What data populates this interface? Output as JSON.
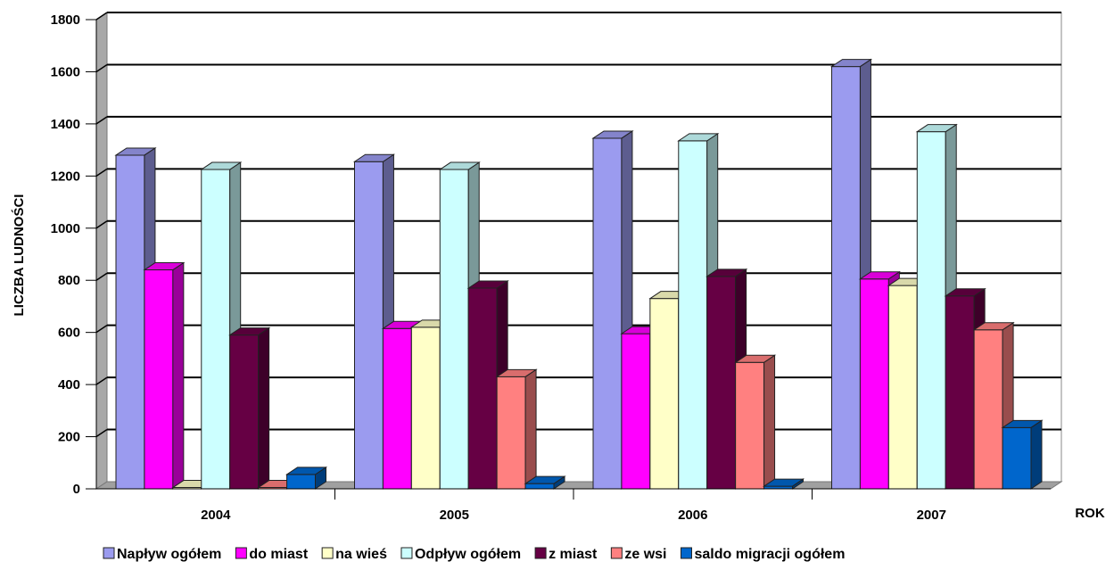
{
  "chart_data": {
    "type": "bar",
    "title": "",
    "ylabel": "LICZBA LUDNOŚCI",
    "xlabel": "ROK",
    "ylim": [
      0,
      1800
    ],
    "yticks": [
      "0",
      "200",
      "400",
      "600",
      "800",
      "1000",
      "1200",
      "1400",
      "1600",
      "1800"
    ],
    "categories": [
      "2004",
      "2005",
      "2006",
      "2007"
    ],
    "grid": true,
    "legend_position": "bottom",
    "series": [
      {
        "name": "Napływ ogółem",
        "color": "#9b9bef",
        "values": [
          1280,
          1255,
          1345,
          1620
        ]
      },
      {
        "name": "do miast",
        "color": "#ff00ff",
        "values": [
          840,
          615,
          595,
          805
        ]
      },
      {
        "name": "na wieś",
        "color": "#ffffc8",
        "values": [
          5,
          620,
          730,
          780
        ]
      },
      {
        "name": "Odpływ ogółem",
        "color": "#ccffff",
        "values": [
          1225,
          1225,
          1335,
          1370
        ]
      },
      {
        "name": "z miast",
        "color": "#660044",
        "values": [
          590,
          770,
          815,
          740
        ]
      },
      {
        "name": "ze wsi",
        "color": "#ff8080",
        "values": [
          5,
          430,
          485,
          610
        ]
      },
      {
        "name": "saldo migracji ogółem",
        "color": "#0066cc",
        "values": [
          55,
          20,
          10,
          235
        ]
      }
    ]
  }
}
